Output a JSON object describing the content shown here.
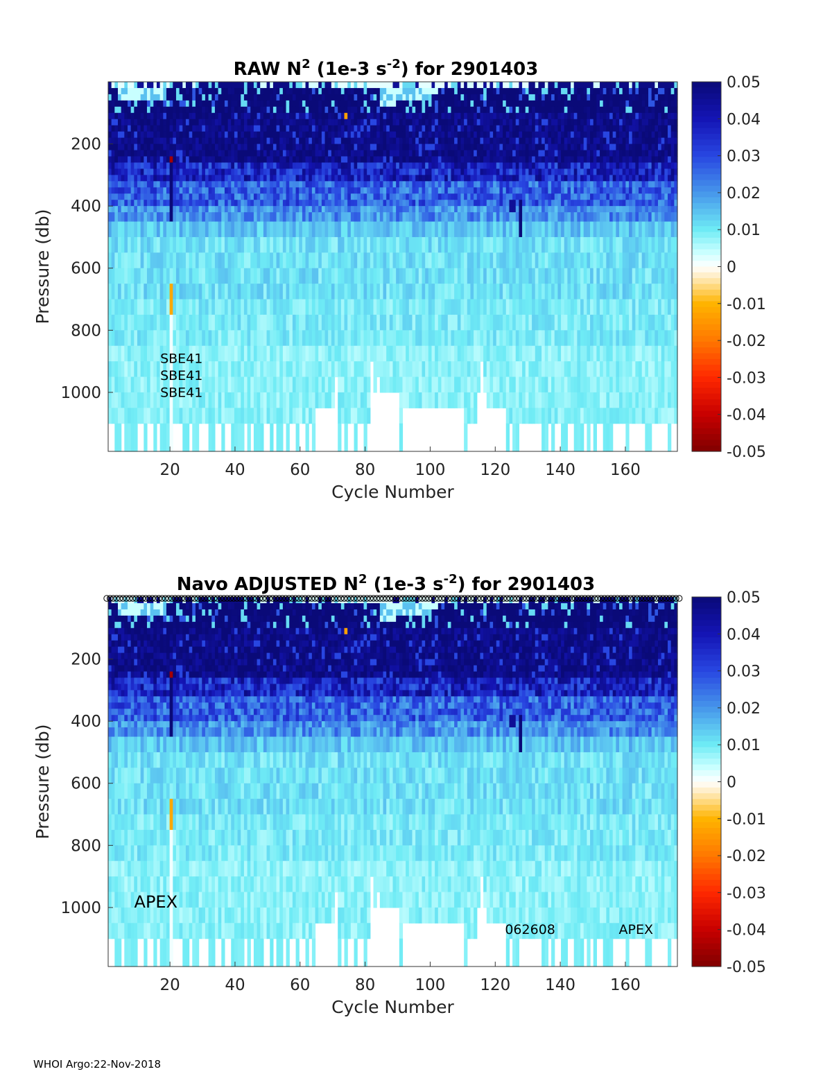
{
  "chart_data": [
    {
      "type": "heatmap",
      "title_parts": [
        "RAW N",
        "2",
        " (1e-3 s",
        "-2",
        ") for 2901403"
      ],
      "xlabel": "Cycle Number",
      "ylabel": "Pressure (db)",
      "xlim": [
        1,
        176
      ],
      "ylim": [
        1190,
        0
      ],
      "xticks": [
        20,
        40,
        60,
        80,
        100,
        120,
        140,
        160
      ],
      "yticks": [
        200,
        400,
        600,
        800,
        1000
      ],
      "colorbar": {
        "range": [
          -0.05,
          0.05
        ],
        "ticks": [
          "0.05",
          "0.04",
          "0.03",
          "0.02",
          "0.01",
          "0",
          "-0.01",
          "-0.02",
          "-0.03",
          "-0.04",
          "-0.05"
        ]
      },
      "annotations": [
        {
          "text": "SBE41",
          "x": 17,
          "y": 905
        },
        {
          "text": "SBE41",
          "x": 17,
          "y": 960
        },
        {
          "text": "SBE41",
          "x": 17,
          "y": 1015
        }
      ],
      "qc_markers": false
    },
    {
      "type": "heatmap",
      "title_parts": [
        "Navo  ADJUSTED N",
        "2",
        " (1e-3 s",
        "-2",
        ") for 2901403"
      ],
      "xlabel": "Cycle Number",
      "ylabel": "Pressure (db)",
      "xlim": [
        1,
        176
      ],
      "ylim": [
        1190,
        0
      ],
      "xticks": [
        20,
        40,
        60,
        80,
        100,
        120,
        140,
        160
      ],
      "yticks": [
        200,
        400,
        600,
        800,
        1000
      ],
      "colorbar": {
        "range": [
          -0.05,
          0.05
        ],
        "ticks": [
          "0.05",
          "0.04",
          "0.03",
          "0.02",
          "0.01",
          "0",
          "-0.01",
          "-0.02",
          "-0.03",
          "-0.04",
          "-0.05"
        ]
      },
      "annotations": [
        {
          "text": "APEX",
          "x": 9,
          "y": 1000,
          "size": "large"
        },
        {
          "text": "062608",
          "x": 123,
          "y": 1085
        },
        {
          "text": "APEX",
          "x": 158,
          "y": 1085
        }
      ],
      "qc_markers": true
    }
  ],
  "footer": "WHOI Argo:22-Nov-2018",
  "colors": {
    "deep": "#0a0a80",
    "mid_blue": "#3a6ae0",
    "light_cyan": "#9ef0f0",
    "zero": "#ffffff",
    "orange": "#ff9900",
    "dark_red": "#800000"
  }
}
